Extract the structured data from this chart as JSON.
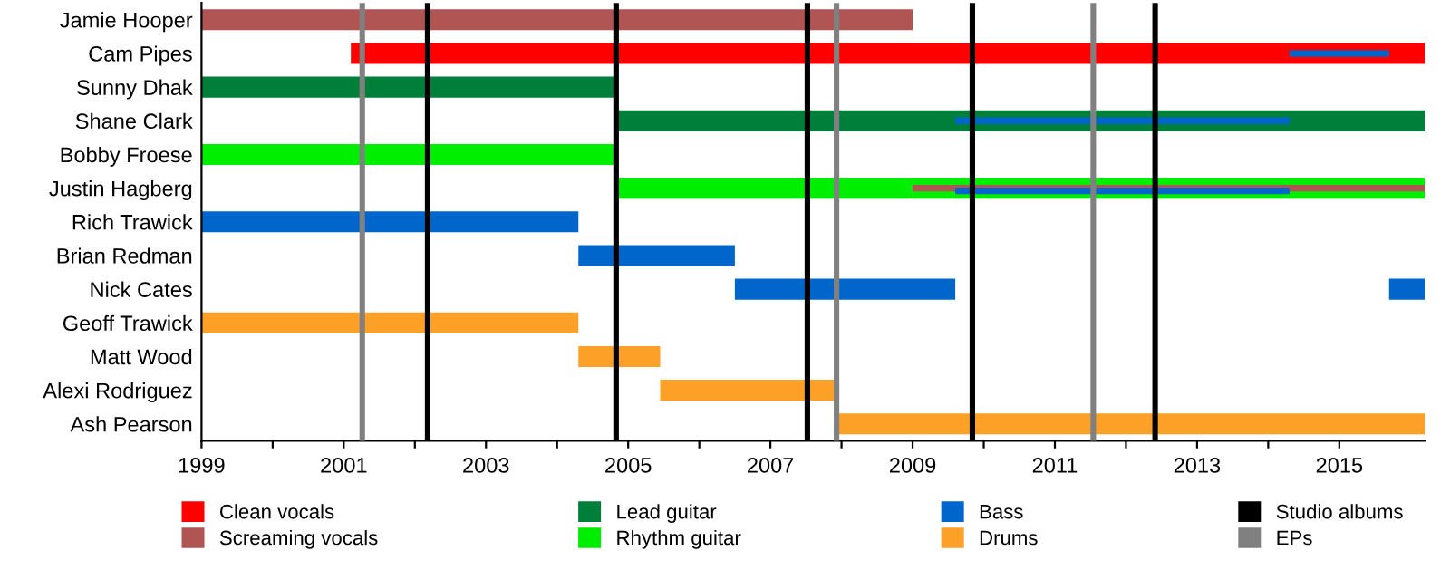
{
  "chart_data": {
    "type": "bar",
    "orientation": "horizontal",
    "categories": [
      "Jamie Hooper",
      "Cam Pipes",
      "Sunny Dhak",
      "Shane Clark",
      "Bobby Froese",
      "Justin Hagberg",
      "Rich Trawick",
      "Brian Redman",
      "Nick Cates",
      "Geoff Trawick",
      "Matt Wood",
      "Alexi Rodriguez",
      "Ash Pearson"
    ],
    "series": [
      {
        "name": "Clean vocals",
        "color": "#ff0000",
        "base": [
          null,
          2001.1,
          null,
          null,
          null,
          null,
          null,
          null,
          null,
          null,
          null,
          null,
          null
        ],
        "values": [
          null,
          15.1,
          null,
          null,
          null,
          null,
          null,
          null,
          null,
          null,
          null,
          null,
          null
        ]
      },
      {
        "name": "Screaming vocals",
        "color": "#b15454",
        "base": [
          1999,
          null,
          null,
          null,
          null,
          2009.0,
          null,
          null,
          null,
          null,
          null,
          null,
          null
        ],
        "values": [
          10.0,
          null,
          null,
          null,
          null,
          7.2,
          null,
          null,
          null,
          null,
          null,
          null,
          null
        ]
      },
      {
        "name": "Lead guitar",
        "color": "#007f3a",
        "base": [
          null,
          null,
          1999,
          2004.8,
          null,
          null,
          null,
          null,
          null,
          null,
          null,
          null,
          null
        ],
        "values": [
          null,
          null,
          5.85,
          11.4,
          null,
          null,
          null,
          null,
          null,
          null,
          null,
          null,
          null
        ]
      },
      {
        "name": "Rhythm guitar",
        "color": "#00ee00",
        "base": [
          null,
          null,
          null,
          null,
          1999,
          2004.8,
          null,
          null,
          null,
          null,
          null,
          null,
          null
        ],
        "values": [
          null,
          null,
          null,
          null,
          5.85,
          11.4,
          null,
          null,
          null,
          null,
          null,
          null,
          null
        ]
      },
      {
        "name": "Bass",
        "color": "#0066cc",
        "base": [
          null,
          2014.3,
          null,
          2009.6,
          null,
          2009.6,
          1999,
          2004.3,
          2006.5,
          null,
          null,
          null,
          null
        ],
        "values": [
          null,
          1.4,
          null,
          4.7,
          null,
          4.7,
          5.3,
          2.2,
          3.1,
          null,
          null,
          null,
          null
        ]
      },
      {
        "name": "Drums",
        "color": "#fda028",
        "base": [
          null,
          null,
          null,
          null,
          null,
          null,
          null,
          null,
          null,
          1999,
          2004.3,
          2005.45,
          2007.95
        ],
        "values": [
          null,
          null,
          null,
          null,
          null,
          null,
          null,
          null,
          null,
          5.3,
          1.15,
          2.5,
          8.25
        ]
      },
      {
        "color": "#0066cc",
        "base": [
          null,
          null,
          null,
          null,
          null,
          null,
          null,
          null,
          2015.7,
          null,
          null,
          null,
          null
        ],
        "values": [
          null,
          null,
          null,
          null,
          null,
          null,
          null,
          null,
          0.5,
          null,
          null,
          null,
          null
        ]
      }
    ],
    "ref_lines": [
      {
        "axis": "x",
        "value": 2002.18,
        "label": "Studio albums",
        "color": "#000000"
      },
      {
        "axis": "x",
        "value": 2004.83,
        "color": "#000000"
      },
      {
        "axis": "x",
        "value": 2007.52,
        "color": "#000000"
      },
      {
        "axis": "x",
        "value": 2009.84,
        "color": "#000000"
      },
      {
        "axis": "x",
        "value": 2012.41,
        "color": "#000000"
      },
      {
        "axis": "x",
        "value": 2001.26,
        "label": "EPs",
        "color": "#808080"
      },
      {
        "axis": "x",
        "value": 2007.93,
        "color": "#808080"
      },
      {
        "axis": "x",
        "value": 2011.54,
        "color": "#808080"
      }
    ],
    "xlim": [
      1999,
      2016.2
    ],
    "xticks": [
      1999,
      {
        "value": 2000,
        "label": null
      },
      2001,
      {
        "value": 2002,
        "label": null
      },
      2003,
      {
        "value": 2004,
        "label": null
      },
      2005,
      {
        "value": 2006,
        "label": null
      },
      2007,
      {
        "value": 2008,
        "label": null
      },
      2009,
      {
        "value": 2010,
        "label": null
      },
      2011,
      {
        "value": 2012,
        "label": null
      },
      2013,
      {
        "value": 2014,
        "label": null
      },
      2015
    ],
    "grid": false,
    "legend": "bottom"
  }
}
